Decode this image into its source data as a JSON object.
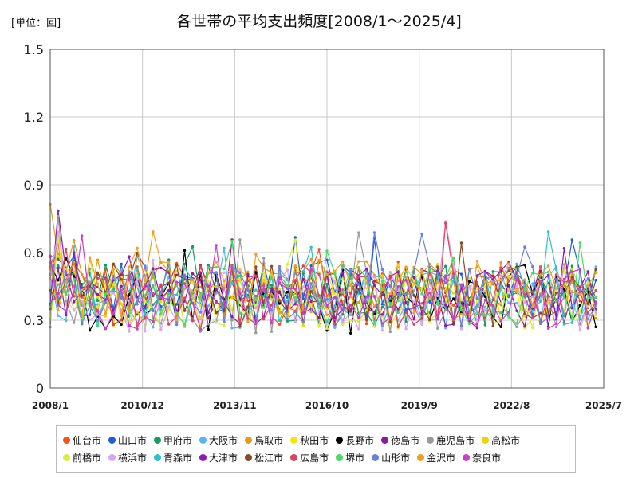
{
  "unit_label": "[単位：回]",
  "chart_data": {
    "type": "line",
    "title": "各世帯の平均支出頻度[2008/1～2025/4]",
    "xlabel": "",
    "ylabel": "",
    "ylim": [
      0,
      1.5
    ],
    "y_ticks": [
      "0",
      "0.3",
      "0.6",
      "0.9",
      "1.2",
      "1.5"
    ],
    "x_ticks": [
      "2008/1",
      "2010/12",
      "2013/11",
      "2016/10",
      "2019/9",
      "2022/8",
      "2025/7"
    ],
    "x_start": "2008/1",
    "x_end": "2025/7",
    "data_end": "2025/4",
    "grid": true,
    "legend_position": "bottom",
    "series": [
      {
        "name": "仙台市",
        "color": "#f4511e",
        "mean": 0.42
      },
      {
        "name": "山口市",
        "color": "#1e5fd6",
        "mean": 0.43
      },
      {
        "name": "甲府市",
        "color": "#169b62",
        "mean": 0.41
      },
      {
        "name": "大阪市",
        "color": "#55b8ec",
        "mean": 0.4
      },
      {
        "name": "鳥取市",
        "color": "#e39b1a",
        "mean": 0.44
      },
      {
        "name": "秋田市",
        "color": "#f6e21a",
        "mean": 0.4
      },
      {
        "name": "長野市",
        "color": "#000000",
        "mean": 0.38
      },
      {
        "name": "徳島市",
        "color": "#8c1aa0",
        "mean": 0.4
      },
      {
        "name": "鹿児島市",
        "color": "#9a9a9a",
        "mean": 0.38
      },
      {
        "name": "高松市",
        "color": "#e9d600",
        "mean": 0.41
      },
      {
        "name": "前橋市",
        "color": "#d7ef3a",
        "mean": 0.4
      },
      {
        "name": "横浜市",
        "color": "#d7a6f0",
        "mean": 0.39
      },
      {
        "name": "青森市",
        "color": "#2fc0c8",
        "mean": 0.41
      },
      {
        "name": "大津市",
        "color": "#8b1bb5",
        "mean": 0.42
      },
      {
        "name": "松江市",
        "color": "#8b4a26",
        "mean": 0.41
      },
      {
        "name": "広島市",
        "color": "#e0405f",
        "mean": 0.41
      },
      {
        "name": "堺市",
        "color": "#4cd96a",
        "mean": 0.4
      },
      {
        "name": "山形市",
        "color": "#6a7fe0",
        "mean": 0.41
      },
      {
        "name": "金沢市",
        "color": "#f0a020",
        "mean": 0.43
      },
      {
        "name": "奈良市",
        "color": "#c840c8",
        "mean": 0.4
      }
    ]
  }
}
